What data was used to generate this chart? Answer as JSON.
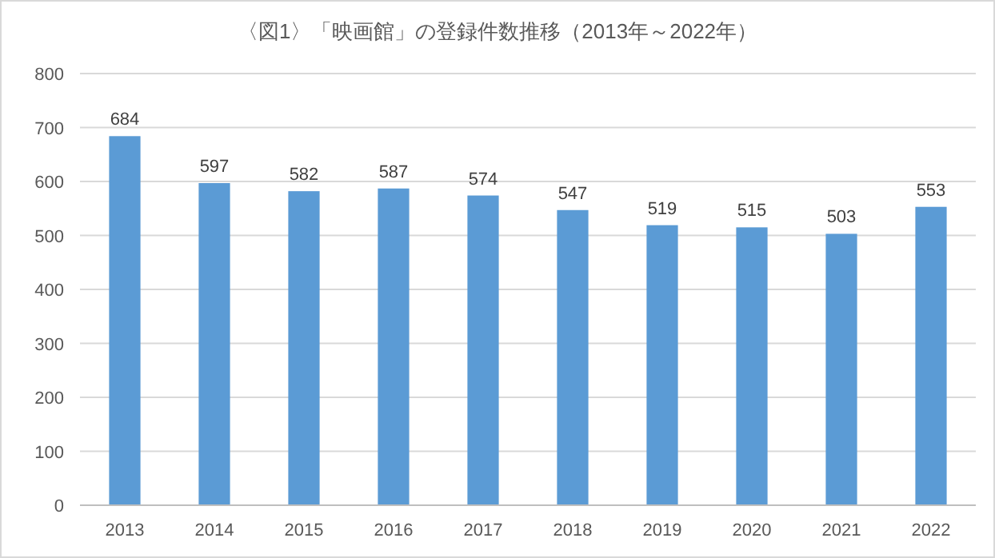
{
  "chart_data": {
    "type": "bar",
    "title": "〈図1〉「映画館」の登録件数推移（2013年～2022年）",
    "categories": [
      "2013",
      "2014",
      "2015",
      "2016",
      "2017",
      "2018",
      "2019",
      "2020",
      "2021",
      "2022"
    ],
    "values": [
      684,
      597,
      582,
      587,
      574,
      547,
      519,
      515,
      503,
      553
    ],
    "color": "#5b9bd5",
    "ylim": [
      0,
      800
    ],
    "yticks": [
      0,
      100,
      200,
      300,
      400,
      500,
      600,
      700,
      800
    ],
    "grid": "y",
    "data_labels": true
  }
}
